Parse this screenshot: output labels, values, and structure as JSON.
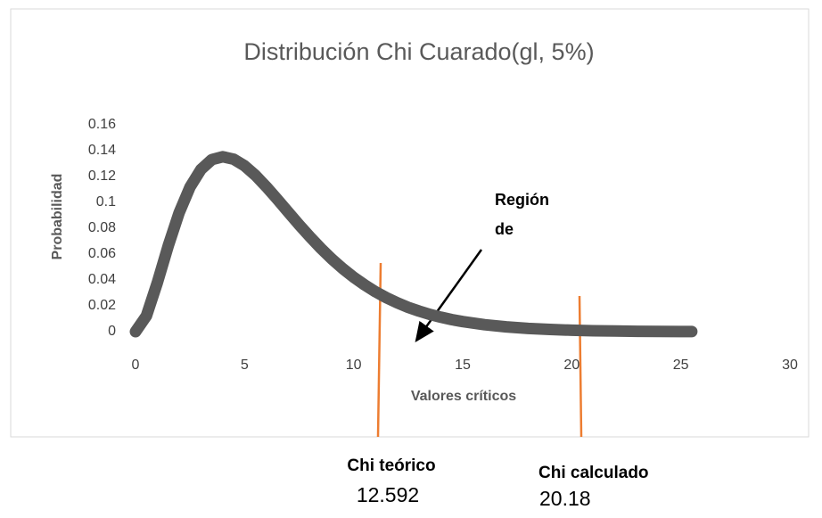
{
  "chart_data": {
    "type": "line",
    "title": "Distribución Chi Cuarado(gl, 5%)",
    "x_label": "Valores críticos",
    "y_label": "Probabilidad",
    "x": [
      0,
      0.5,
      1,
      1.5,
      2,
      2.5,
      3,
      3.5,
      4,
      4.5,
      5,
      5.5,
      6,
      6.5,
      7,
      7.5,
      8,
      8.5,
      9,
      9.5,
      10,
      10.5,
      11,
      11.5,
      12,
      12.5,
      13,
      13.5,
      14,
      14.5,
      15,
      16,
      17,
      18,
      19,
      20,
      21,
      22,
      23,
      24,
      25,
      25.5
    ],
    "series": [
      {
        "name": "Probabilidad",
        "color": "#595959",
        "values": [
          0,
          0.0122,
          0.0379,
          0.0664,
          0.092,
          0.1119,
          0.1255,
          0.1331,
          0.1353,
          0.1334,
          0.1283,
          0.1209,
          0.112,
          0.1024,
          0.0925,
          0.0827,
          0.0733,
          0.0644,
          0.0562,
          0.0488,
          0.0421,
          0.0362,
          0.0309,
          0.0263,
          0.0223,
          0.0188,
          0.0159,
          0.0133,
          0.0112,
          0.0093,
          0.0078,
          0.0054,
          0.0037,
          0.0025,
          0.0017,
          0.0011,
          0.0007,
          0.0005,
          0.0003,
          0.0002,
          0.0001,
          0.0001
        ]
      }
    ],
    "xlim": [
      0,
      30
    ],
    "xticks": [
      0,
      5,
      10,
      15,
      20,
      25,
      30
    ],
    "ylim": [
      0,
      0.16
    ],
    "yticks": [
      0,
      0.02,
      0.04,
      0.06,
      0.08,
      0.1,
      0.12,
      0.14,
      0.16
    ],
    "grid": false,
    "annotations": [
      {
        "text": "Región",
        "line2": "de"
      },
      {
        "text": "Chi teórico",
        "value": 12.592
      },
      {
        "text": "Chi calculado",
        "value": 20.18
      }
    ]
  }
}
